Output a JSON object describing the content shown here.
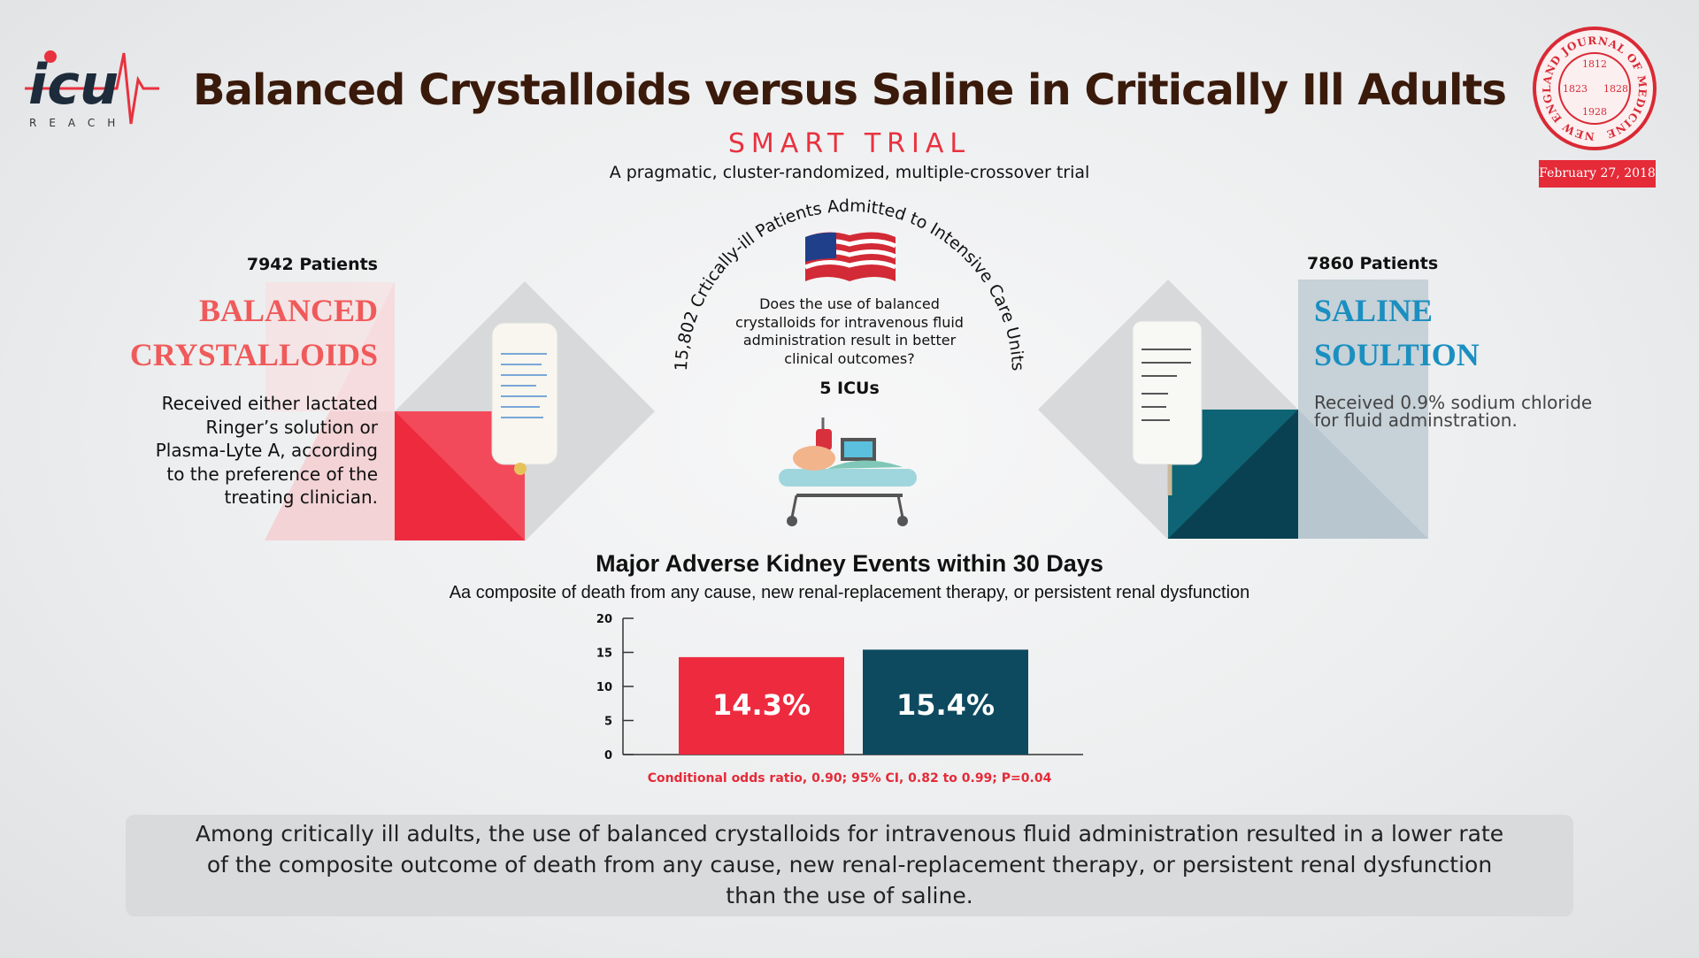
{
  "logo": {
    "name": "icu",
    "tagline": "REACH"
  },
  "header": {
    "title": "Balanced Crystalloids versus Saline in Critically Ill Adults",
    "trial_name": "SMART TRIAL",
    "trial_design": "A pragmatic, cluster-randomized, multiple-crossover trial"
  },
  "journal": {
    "seal_text": "NEW ENGLAND JOURNAL OF MEDICINE",
    "years": [
      "1812",
      "1823",
      "1828",
      "1928"
    ],
    "date": "February 27, 2018"
  },
  "center": {
    "population": "15,802 Crtically-ill Patients Admitted to Intensive Care Units",
    "question": "Does the use of balanced crystalloids for intravenous fluid administration result in better clinical outcomes?",
    "sites": "5 ICUs"
  },
  "groups": [
    {
      "patients": "7942 Patients",
      "name_lines": [
        "BALANCED",
        "CRYSTALLOIDS"
      ],
      "description": "Received either lactated Ringer’s solution or Plasma-Lyte A, according to the preference of the treating clinician."
    },
    {
      "patients": "7860 Patients",
      "name_lines": [
        "SALINE",
        "SOULTION"
      ],
      "description": "Received 0.9% sodium chloride for fluid adminstration."
    }
  ],
  "chart_data": {
    "type": "bar",
    "title": "Major Adverse Kidney Events within 30 Days",
    "subtitle": "Aa composite of death from any cause, new renal-replacement therapy, or persistent renal dysfunction",
    "categories": [
      null,
      null
    ],
    "values": [
      14.3,
      15.4
    ],
    "value_labels": [
      "14.3%",
      "15.4%"
    ],
    "colors": [
      "#ee2a3f",
      "#0e4a5f"
    ],
    "ylim": [
      0,
      20
    ],
    "yticks": [
      0,
      5,
      10,
      15,
      20
    ],
    "note": "Conditional odds ratio, 0.90; 95% CI, 0.82 to 0.99; P=0.04"
  },
  "conclusion": "Among critically ill adults, the use of balanced crystalloids for intravenous fluid administration resulted in a lower rate of the composite outcome of death from any cause, new renal-replacement therapy, or persistent renal dysfunction than the use of saline."
}
